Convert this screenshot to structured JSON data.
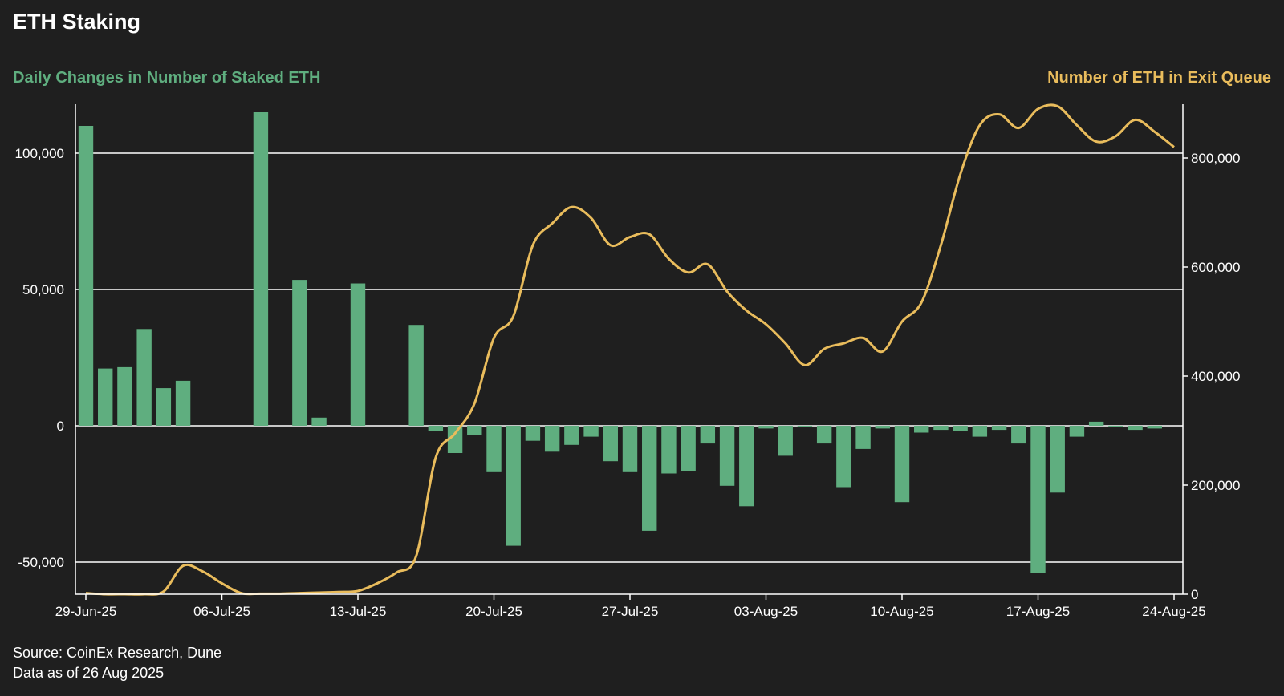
{
  "title": "ETH Staking",
  "source": "Source: CoinEx Research, Dune",
  "as_of": "Data as of 26 Aug 2025",
  "colors": {
    "background": "#1f1f1f",
    "bars": "#5fae7f",
    "line": "#e9bc5c",
    "grid": "#ffffff"
  },
  "chart_data": {
    "type": "bar+line",
    "left_axis_label": "Daily Changes in Number of Staked ETH",
    "right_axis_label": "Number of ETH in Exit Queue",
    "x_start": "29-Jun-25",
    "x_end": "24-Aug-25",
    "x_ticks": [
      "29-Jun-25",
      "06-Jul-25",
      "13-Jul-25",
      "20-Jul-25",
      "27-Jul-25",
      "03-Aug-25",
      "10-Aug-25",
      "17-Aug-25",
      "24-Aug-25"
    ],
    "y_left_ticks": [
      100000,
      50000,
      0,
      -50000
    ],
    "y_left_tick_labels": [
      "100,000",
      "50,000",
      "0",
      "-50,000"
    ],
    "y_left_range": [
      -60000,
      120000
    ],
    "y_right_ticks": [
      0,
      200000,
      400000,
      600000,
      800000
    ],
    "y_right_tick_labels": [
      "0",
      "200,000",
      "400,000",
      "600,000",
      "800,000"
    ],
    "y_right_range": [
      0,
      900000
    ],
    "grid": "horizontal",
    "series": [
      {
        "name": "Daily Changes in Number of Staked ETH",
        "type": "bar",
        "axis": "left",
        "x": [
          "29-Jun-25",
          "30-Jun-25",
          "01-Jul-25",
          "02-Jul-25",
          "03-Jul-25",
          "04-Jul-25",
          "05-Jul-25",
          "06-Jul-25",
          "07-Jul-25",
          "08-Jul-25",
          "09-Jul-25",
          "10-Jul-25",
          "11-Jul-25",
          "12-Jul-25",
          "13-Jul-25",
          "14-Jul-25",
          "15-Jul-25",
          "16-Jul-25",
          "17-Jul-25",
          "18-Jul-25",
          "19-Jul-25",
          "20-Jul-25",
          "21-Jul-25",
          "22-Jul-25",
          "23-Jul-25",
          "24-Jul-25",
          "25-Jul-25",
          "26-Jul-25",
          "27-Jul-25",
          "28-Jul-25",
          "29-Jul-25",
          "30-Jul-25",
          "31-Jul-25",
          "01-Aug-25",
          "02-Aug-25",
          "03-Aug-25",
          "04-Aug-25",
          "05-Aug-25",
          "06-Aug-25",
          "07-Aug-25",
          "08-Aug-25",
          "09-Aug-25",
          "10-Aug-25",
          "11-Aug-25",
          "12-Aug-25",
          "13-Aug-25",
          "14-Aug-25",
          "15-Aug-25",
          "16-Aug-25",
          "17-Aug-25",
          "18-Aug-25",
          "19-Aug-25",
          "20-Aug-25",
          "21-Aug-25",
          "22-Aug-25",
          "23-Aug-25",
          "24-Aug-25"
        ],
        "values": [
          110000,
          21000,
          21500,
          35500,
          13800,
          16500,
          0,
          0,
          0,
          115000,
          0,
          53500,
          3000,
          0,
          52200,
          0,
          0,
          37000,
          -2000,
          -10000,
          -3500,
          -17000,
          -44000,
          -5500,
          -9500,
          -7000,
          -4000,
          -13000,
          -17000,
          -38500,
          -17500,
          -16500,
          -6500,
          -22000,
          -29500,
          -1000,
          -11000,
          -500,
          -6500,
          -22500,
          -8500,
          -1000,
          -28000,
          -2500,
          -1500,
          -2000,
          -4000,
          -1500,
          -6500,
          -54000,
          -24500,
          -4000,
          1500,
          -500,
          -1500,
          -1000,
          0
        ]
      },
      {
        "name": "Number of ETH in Exit Queue",
        "type": "line",
        "axis": "right",
        "x": [
          "29-Jun-25",
          "30-Jun-25",
          "01-Jul-25",
          "02-Jul-25",
          "03-Jul-25",
          "04-Jul-25",
          "05-Jul-25",
          "06-Jul-25",
          "07-Jul-25",
          "08-Jul-25",
          "09-Jul-25",
          "10-Jul-25",
          "11-Jul-25",
          "12-Jul-25",
          "13-Jul-25",
          "14-Jul-25",
          "15-Jul-25",
          "16-Jul-25",
          "17-Jul-25",
          "18-Jul-25",
          "19-Jul-25",
          "20-Jul-25",
          "21-Jul-25",
          "22-Jul-25",
          "23-Jul-25",
          "24-Jul-25",
          "25-Jul-25",
          "26-Jul-25",
          "27-Jul-25",
          "28-Jul-25",
          "29-Jul-25",
          "30-Jul-25",
          "31-Jul-25",
          "01-Aug-25",
          "02-Aug-25",
          "03-Aug-25",
          "04-Aug-25",
          "05-Aug-25",
          "06-Aug-25",
          "07-Aug-25",
          "08-Aug-25",
          "09-Aug-25",
          "10-Aug-25",
          "11-Aug-25",
          "12-Aug-25",
          "13-Aug-25",
          "14-Aug-25",
          "15-Aug-25",
          "16-Aug-25",
          "17-Aug-25",
          "18-Aug-25",
          "19-Aug-25",
          "20-Aug-25",
          "21-Aug-25",
          "22-Aug-25",
          "23-Aug-25",
          "24-Aug-25"
        ],
        "values": [
          2000,
          0,
          0,
          0,
          5000,
          52000,
          42000,
          20000,
          2000,
          1000,
          1000,
          2000,
          3000,
          4000,
          6000,
          20000,
          40000,
          70000,
          250000,
          295000,
          350000,
          470000,
          510000,
          640000,
          680000,
          710000,
          690000,
          640000,
          655000,
          660000,
          615000,
          590000,
          605000,
          555000,
          520000,
          495000,
          460000,
          420000,
          450000,
          460000,
          470000,
          445000,
          500000,
          535000,
          640000,
          770000,
          860000,
          880000,
          855000,
          890000,
          895000,
          860000,
          830000,
          840000,
          870000,
          848000,
          820000
        ]
      }
    ]
  }
}
